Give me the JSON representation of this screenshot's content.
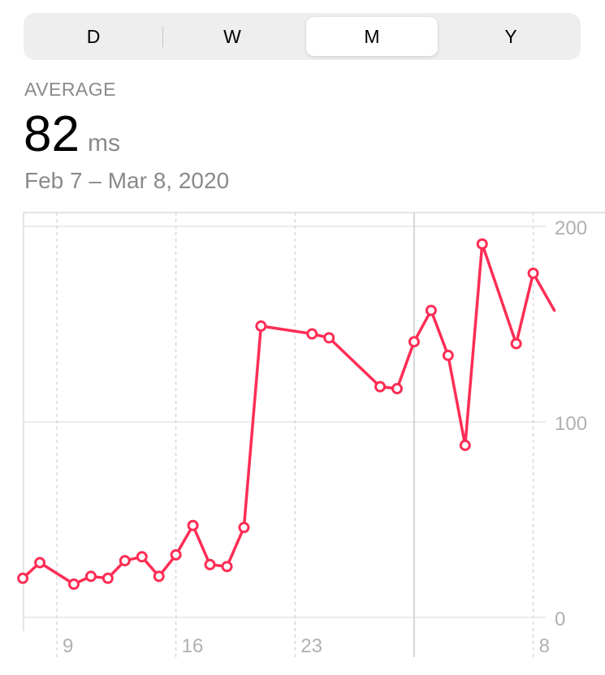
{
  "segments": [
    {
      "label": "D",
      "selected": false
    },
    {
      "label": "W",
      "selected": false
    },
    {
      "label": "M",
      "selected": true
    },
    {
      "label": "Y",
      "selected": false
    }
  ],
  "summary": {
    "label": "AVERAGE",
    "value": "82",
    "unit": "ms",
    "date_range": "Feb 7 – Mar 8, 2020"
  },
  "colors": {
    "series": "#fe2d55",
    "grid": "#e5e5e5",
    "tick_text": "#b0b0b3"
  },
  "chart_data": {
    "type": "line",
    "title": "",
    "xlabel": "",
    "ylabel": "",
    "ylim": [
      0,
      200
    ],
    "y_ticks": [
      0,
      100,
      200
    ],
    "y_axis_position": "right",
    "xlim": [
      "2020-02-07",
      "2020-03-08"
    ],
    "x_ticks": [
      {
        "date": "2020-02-09",
        "label": "9"
      },
      {
        "date": "2020-02-16",
        "label": "16"
      },
      {
        "date": "2020-02-23",
        "label": "23"
      },
      {
        "date": "2020-03-01",
        "label": ""
      },
      {
        "date": "2020-03-08",
        "label": "8"
      }
    ],
    "grid": true,
    "series": [
      {
        "marker": "hollow-circle",
        "points": [
          {
            "x": "2020-02-07",
            "y": 20
          },
          {
            "x": "2020-02-08",
            "y": 28
          },
          {
            "x": "2020-02-10",
            "y": 17
          },
          {
            "x": "2020-02-11",
            "y": 21
          },
          {
            "x": "2020-02-12",
            "y": 20
          },
          {
            "x": "2020-02-13",
            "y": 29
          },
          {
            "x": "2020-02-14",
            "y": 31
          },
          {
            "x": "2020-02-15",
            "y": 21
          },
          {
            "x": "2020-02-16",
            "y": 32
          },
          {
            "x": "2020-02-17",
            "y": 47
          },
          {
            "x": "2020-02-18",
            "y": 27
          },
          {
            "x": "2020-02-19",
            "y": 26
          },
          {
            "x": "2020-02-20",
            "y": 46
          },
          {
            "x": "2020-02-21",
            "y": 149
          },
          {
            "x": "2020-02-24",
            "y": 145
          },
          {
            "x": "2020-02-25",
            "y": 143
          },
          {
            "x": "2020-02-28",
            "y": 118
          },
          {
            "x": "2020-02-29",
            "y": 117
          },
          {
            "x": "2020-03-01",
            "y": 141
          },
          {
            "x": "2020-03-02",
            "y": 157
          },
          {
            "x": "2020-03-03",
            "y": 134
          },
          {
            "x": "2020-03-04",
            "y": 88
          },
          {
            "x": "2020-03-05",
            "y": 191
          },
          {
            "x": "2020-03-07",
            "y": 140
          },
          {
            "x": "2020-03-08",
            "y": 176
          }
        ]
      }
    ]
  }
}
